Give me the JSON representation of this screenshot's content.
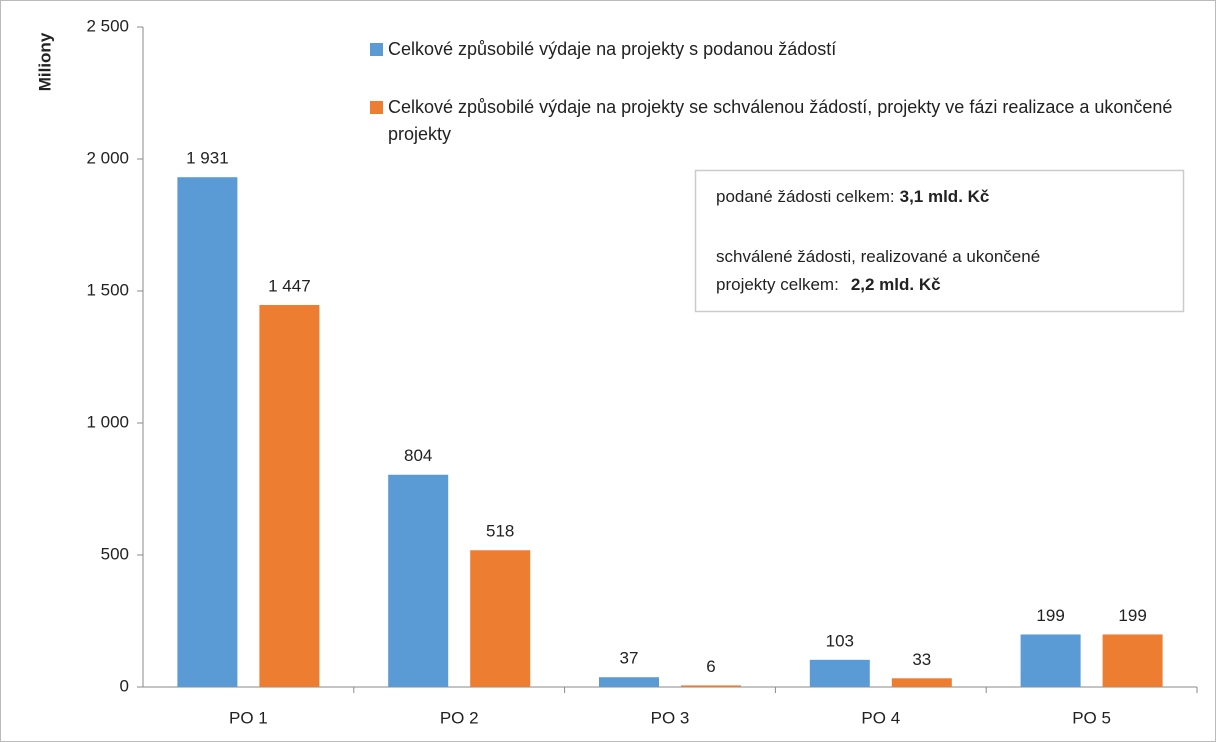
{
  "chart_data": {
    "type": "bar",
    "y_label": "Miliony",
    "categories": [
      "PO 1",
      "PO 2",
      "PO 3",
      "PO 4",
      "PO 5"
    ],
    "series": [
      {
        "name": "Celkové způsobilé výdaje na projekty s podanou žádostí",
        "color": "#5b9bd5",
        "values": [
          1931,
          804,
          37,
          103,
          199
        ],
        "value_labels": [
          "1 931",
          "804",
          "37",
          "103",
          "199"
        ]
      },
      {
        "name": "Celkové způsobilé výdaje na projekty se schválenou žádostí, projekty ve fázi realizace a ukončené projekty",
        "color": "#ed7d31",
        "values": [
          1447,
          518,
          6,
          33,
          199
        ],
        "value_labels": [
          "1 447",
          "518",
          "6",
          "33",
          "199"
        ]
      }
    ],
    "ylim": [
      0,
      2500
    ],
    "yticks": [
      0,
      500,
      {
        "value": 1000,
        "label": "1 000"
      },
      {
        "value": 1500,
        "label": "1 500"
      },
      {
        "value": 2000,
        "label": "2 000"
      },
      {
        "value": 2500,
        "label": "2 500"
      }
    ],
    "annotation": {
      "line1": {
        "text": "podané žádosti celkem:",
        "bold": "3,1 mld.  Kč"
      },
      "line2": "schválené žádosti, realizované a ukončené",
      "line3": {
        "text": "projekty celkem:",
        "bold": "2,2 mld. Kč"
      }
    }
  }
}
